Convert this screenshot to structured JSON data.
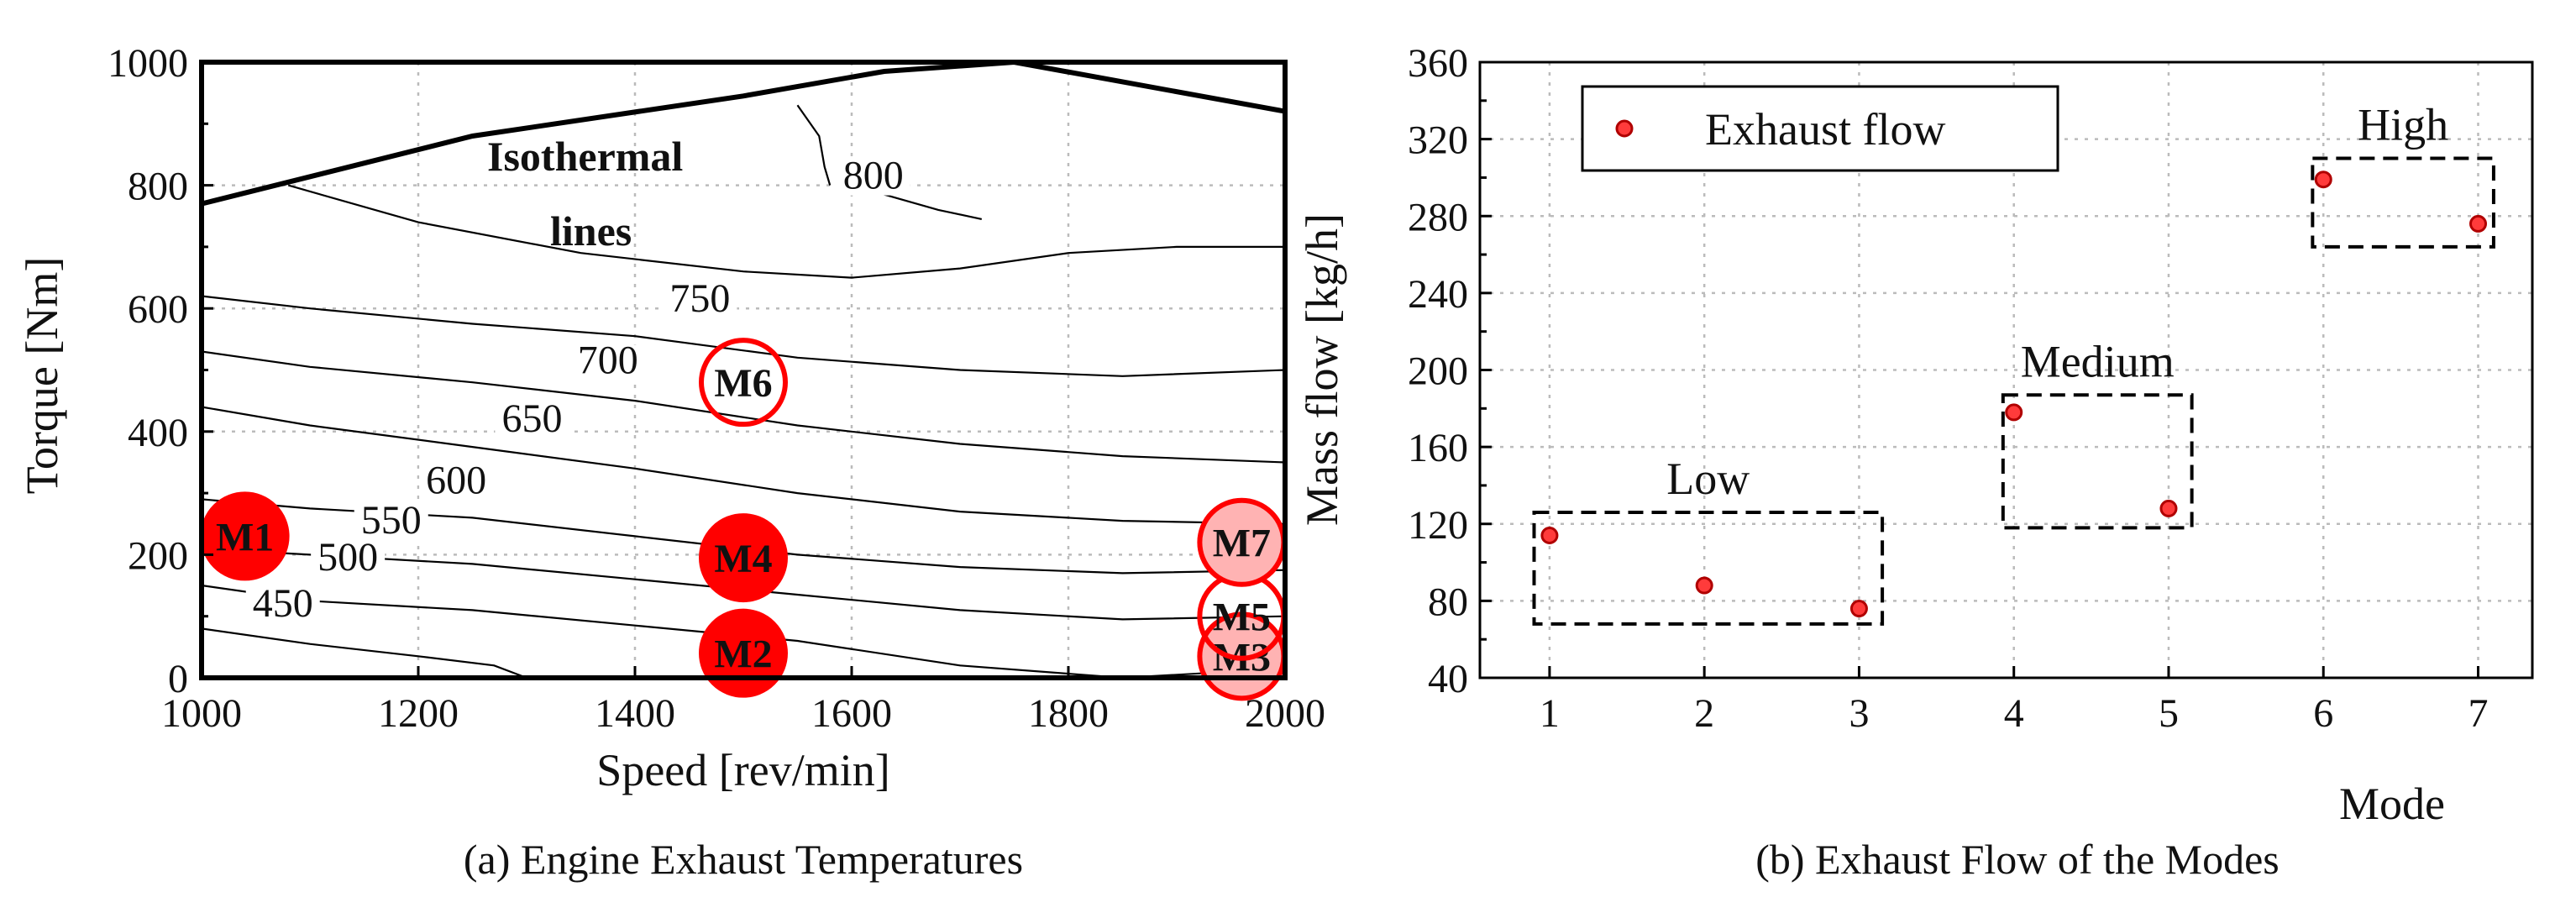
{
  "chart_data": [
    {
      "type": "contour",
      "caption": "(a) Engine Exhaust Temperatures",
      "xlabel": "Speed [rev/min]",
      "ylabel": "Torque [Nm]",
      "xlim": [
        1000,
        2000
      ],
      "ylim": [
        0,
        1000
      ],
      "xticks": [
        "1000",
        "1200",
        "1400",
        "1600",
        "1800",
        "2000"
      ],
      "yticks": [
        "0",
        "200",
        "400",
        "600",
        "800",
        "1000"
      ],
      "annotation": {
        "line1": "Isothermal",
        "line2": "lines"
      },
      "max_torque_curve": [
        [
          1000,
          770
        ],
        [
          1250,
          880
        ],
        [
          1500,
          945
        ],
        [
          1630,
          985
        ],
        [
          1750,
          1000
        ],
        [
          2000,
          920
        ]
      ],
      "contours": [
        {
          "label": "450",
          "points": [
            [
              1000,
              80
            ],
            [
              1100,
              55
            ],
            [
              1200,
              35
            ],
            [
              1270,
              20
            ],
            [
              1300,
              0
            ]
          ]
        },
        {
          "label": "500",
          "points": [
            [
              1000,
              150
            ],
            [
              1100,
              125
            ],
            [
              1250,
              110
            ],
            [
              1400,
              85
            ],
            [
              1550,
              60
            ],
            [
              1700,
              20
            ],
            [
              1850,
              0
            ],
            [
              1950,
              10
            ],
            [
              2000,
              25
            ]
          ]
        },
        {
          "label": "550",
          "points": [
            [
              1000,
              210
            ],
            [
              1100,
              200
            ],
            [
              1250,
              185
            ],
            [
              1400,
              160
            ],
            [
              1550,
              135
            ],
            [
              1700,
              110
            ],
            [
              1850,
              95
            ],
            [
              2000,
              100
            ]
          ]
        },
        {
          "label": "600",
          "points": [
            [
              1000,
              290
            ],
            [
              1100,
              275
            ],
            [
              1250,
              260
            ],
            [
              1400,
              230
            ],
            [
              1550,
              200
            ],
            [
              1700,
              180
            ],
            [
              1850,
              170
            ],
            [
              2000,
              175
            ]
          ]
        },
        {
          "label": "650",
          "points": [
            [
              1000,
              440
            ],
            [
              1100,
              410
            ],
            [
              1250,
              375
            ],
            [
              1400,
              340
            ],
            [
              1550,
              300
            ],
            [
              1700,
              270
            ],
            [
              1850,
              255
            ],
            [
              2000,
              250
            ]
          ]
        },
        {
          "label": "700",
          "points": [
            [
              1000,
              530
            ],
            [
              1100,
              505
            ],
            [
              1250,
              480
            ],
            [
              1400,
              450
            ],
            [
              1550,
              410
            ],
            [
              1700,
              380
            ],
            [
              1850,
              360
            ],
            [
              2000,
              350
            ]
          ]
        },
        {
          "label": "750",
          "points": [
            [
              1000,
              620
            ],
            [
              1100,
              600
            ],
            [
              1250,
              575
            ],
            [
              1400,
              555
            ],
            [
              1550,
              520
            ],
            [
              1700,
              500
            ],
            [
              1850,
              490
            ],
            [
              2000,
              500
            ]
          ]
        },
        {
          "label": "",
          "points": [
            [
              1080,
              800
            ],
            [
              1200,
              740
            ],
            [
              1350,
              690
            ],
            [
              1500,
              660
            ],
            [
              1600,
              650
            ],
            [
              1700,
              665
            ],
            [
              1800,
              690
            ],
            [
              1900,
              700
            ],
            [
              2000,
              700
            ]
          ]
        },
        {
          "label": "800",
          "points": [
            [
              1550,
              930
            ],
            [
              1570,
              880
            ],
            [
              1575,
              830
            ],
            [
              1580,
              800
            ]
          ]
        },
        {
          "label": "",
          "points": [
            [
              1620,
              790
            ],
            [
              1680,
              760
            ],
            [
              1720,
              745
            ]
          ]
        }
      ],
      "contour_label_positions": [
        {
          "label": "450",
          "x": 1075,
          "y": 105
        },
        {
          "label": "500",
          "x": 1135,
          "y": 180
        },
        {
          "label": "550",
          "x": 1175,
          "y": 240
        },
        {
          "label": "600",
          "x": 1235,
          "y": 305
        },
        {
          "label": "650",
          "x": 1305,
          "y": 405
        },
        {
          "label": "700",
          "x": 1375,
          "y": 500
        },
        {
          "label": "750",
          "x": 1460,
          "y": 600
        },
        {
          "label": "800",
          "x": 1620,
          "y": 800
        }
      ],
      "modes": [
        {
          "label": "M1",
          "x": 1040,
          "y": 230,
          "style": "filled"
        },
        {
          "label": "M2",
          "x": 1500,
          "y": 40,
          "style": "filled"
        },
        {
          "label": "M3",
          "x": 1960,
          "y": 35,
          "style": "light"
        },
        {
          "label": "M4",
          "x": 1500,
          "y": 195,
          "style": "filled"
        },
        {
          "label": "M5",
          "x": 1960,
          "y": 100,
          "style": "outline"
        },
        {
          "label": "M6",
          "x": 1500,
          "y": 480,
          "style": "outline"
        },
        {
          "label": "M7",
          "x": 1960,
          "y": 220,
          "style": "light"
        }
      ],
      "colors": {
        "mode": "#ff0000",
        "mode_light": "#ffb3b3",
        "line": "#000000"
      }
    },
    {
      "type": "scatter",
      "caption": "(b) Exhaust Flow of the Modes",
      "xlabel": "Mode",
      "ylabel": "Mass flow [kg/h]",
      "xlim": [
        0.55,
        7.35
      ],
      "ylim": [
        40,
        360
      ],
      "xticks": [
        "1",
        "2",
        "3",
        "4",
        "5",
        "6",
        "7"
      ],
      "yticks": [
        "40",
        "80",
        "120",
        "160",
        "200",
        "240",
        "280",
        "320",
        "360"
      ],
      "series": [
        {
          "name": "Exhaust flow",
          "x": [
            1,
            2,
            3,
            4,
            5,
            6,
            7
          ],
          "y": [
            114,
            88,
            76,
            178,
            128,
            299,
            276
          ]
        }
      ],
      "legend": "top-left",
      "groups": [
        {
          "label": "Low",
          "x": [
            0.9,
            3.15
          ],
          "y": [
            68,
            126
          ]
        },
        {
          "label": "Medium",
          "x": [
            3.93,
            5.15
          ],
          "y": [
            118,
            187
          ]
        },
        {
          "label": "High",
          "x": [
            5.93,
            7.1
          ],
          "y": [
            264,
            310
          ]
        }
      ],
      "colors": {
        "marker": "#ff3b3b",
        "marker_edge": "#b00000"
      }
    }
  ]
}
